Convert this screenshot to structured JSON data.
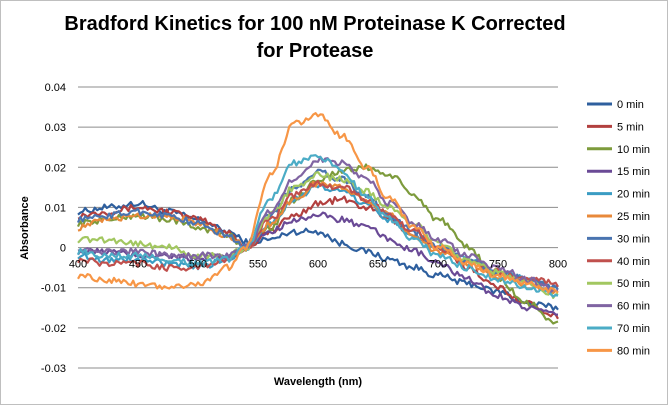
{
  "chart_data": {
    "type": "line",
    "title": "Bradford Kinetics for 100 nM Proteinase K Corrected for Protease",
    "title_lines": [
      "Bradford Kinetics for 100 nM Proteinase K Corrected",
      "for Protease"
    ],
    "xlabel": "Wavelength (nm)",
    "ylabel": "Absorbance",
    "xlim": [
      400,
      800
    ],
    "ylim": [
      -0.03,
      0.04
    ],
    "xticks": [
      400,
      450,
      500,
      550,
      600,
      650,
      700,
      750,
      800
    ],
    "yticks": [
      0.04,
      0.03,
      0.02,
      0.01,
      0,
      -0.01,
      -0.02,
      -0.03
    ],
    "ytick_labels": [
      "0.04",
      "0.03",
      "0.02",
      "0.01",
      "0",
      "-0.01",
      "-0.02",
      "-0.03"
    ],
    "grid": "horizontal",
    "legend": "right",
    "x": [
      400,
      425,
      450,
      475,
      500,
      525,
      540,
      560,
      580,
      600,
      620,
      640,
      660,
      680,
      700,
      725,
      750,
      775,
      800
    ],
    "series": [
      {
        "name": "0 min",
        "color": "#2E5F9E",
        "values": [
          0.009,
          0.01,
          0.011,
          0.009,
          0.007,
          0.004,
          0.0015,
          0.002,
          0.004,
          0.004,
          0.001,
          -0.001,
          -0.003,
          -0.005,
          -0.007,
          -0.009,
          -0.011,
          -0.014,
          -0.015
        ]
      },
      {
        "name": "5 min",
        "color": "#B2403F",
        "values": [
          0.008,
          0.009,
          0.01,
          0.009,
          0.007,
          0.004,
          0.0,
          0.004,
          0.008,
          0.011,
          0.012,
          0.01,
          0.007,
          0.003,
          0.0,
          -0.005,
          -0.01,
          -0.014,
          -0.017
        ]
      },
      {
        "name": "10 min",
        "color": "#7D9B3C",
        "values": [
          0.006,
          0.007,
          0.008,
          0.007,
          0.005,
          0.003,
          0.0,
          0.005,
          0.012,
          0.017,
          0.019,
          0.02,
          0.018,
          0.013,
          0.007,
          0.0,
          -0.008,
          -0.014,
          -0.019
        ]
      },
      {
        "name": "15 min",
        "color": "#6A4A96",
        "values": [
          -0.001,
          -0.001,
          -0.002,
          -0.002,
          -0.003,
          -0.002,
          0.0,
          0.004,
          0.007,
          0.008,
          0.007,
          0.005,
          0.002,
          -0.001,
          -0.004,
          -0.008,
          -0.012,
          -0.015,
          -0.017
        ]
      },
      {
        "name": "20 min",
        "color": "#3A9CC3",
        "values": [
          -0.002,
          -0.003,
          -0.003,
          -0.004,
          -0.005,
          -0.003,
          0.0,
          0.006,
          0.012,
          0.015,
          0.014,
          0.011,
          0.007,
          0.003,
          0.0,
          -0.003,
          -0.006,
          -0.008,
          -0.01
        ]
      },
      {
        "name": "25 min",
        "color": "#E8893A",
        "values": [
          0.005,
          0.007,
          0.008,
          0.008,
          0.006,
          0.003,
          0.0,
          0.006,
          0.012,
          0.016,
          0.015,
          0.012,
          0.008,
          0.003,
          -0.001,
          -0.004,
          -0.007,
          -0.009,
          -0.011
        ]
      },
      {
        "name": "30 min",
        "color": "#4A74B0",
        "values": [
          0.007,
          0.008,
          0.009,
          0.008,
          0.006,
          0.003,
          0.0,
          0.008,
          0.015,
          0.019,
          0.017,
          0.013,
          0.008,
          0.004,
          0.0,
          -0.003,
          -0.006,
          -0.008,
          -0.01
        ]
      },
      {
        "name": "40 min",
        "color": "#C0504D",
        "values": [
          -0.003,
          -0.004,
          -0.004,
          -0.005,
          -0.005,
          -0.003,
          0.0,
          0.007,
          0.013,
          0.016,
          0.015,
          0.012,
          0.008,
          0.004,
          0.0,
          -0.004,
          -0.006,
          -0.008,
          -0.009
        ]
      },
      {
        "name": "50 min",
        "color": "#A2C760",
        "values": [
          0.002,
          0.002,
          0.001,
          0.0,
          -0.002,
          -0.002,
          0.0,
          0.008,
          0.015,
          0.018,
          0.017,
          0.014,
          0.01,
          0.006,
          0.001,
          -0.003,
          -0.006,
          -0.009,
          -0.012
        ]
      },
      {
        "name": "60 min",
        "color": "#8064A2",
        "values": [
          0.0,
          -0.001,
          -0.001,
          -0.002,
          -0.002,
          -0.002,
          0.0,
          0.009,
          0.017,
          0.022,
          0.021,
          0.017,
          0.011,
          0.006,
          0.002,
          -0.002,
          -0.005,
          -0.008,
          -0.011
        ]
      },
      {
        "name": "70 min",
        "color": "#4BACC6",
        "values": [
          -0.001,
          -0.002,
          -0.002,
          -0.003,
          -0.004,
          -0.003,
          0.0,
          0.012,
          0.021,
          0.023,
          0.019,
          0.013,
          0.007,
          0.002,
          -0.002,
          -0.005,
          -0.008,
          -0.01,
          -0.012
        ]
      },
      {
        "name": "80 min",
        "color": "#F79646",
        "values": [
          -0.007,
          -0.008,
          -0.009,
          -0.01,
          -0.009,
          -0.005,
          0.0,
          0.018,
          0.031,
          0.033,
          0.028,
          0.02,
          0.012,
          0.005,
          0.0,
          -0.004,
          -0.007,
          -0.009,
          -0.011
        ]
      }
    ]
  }
}
